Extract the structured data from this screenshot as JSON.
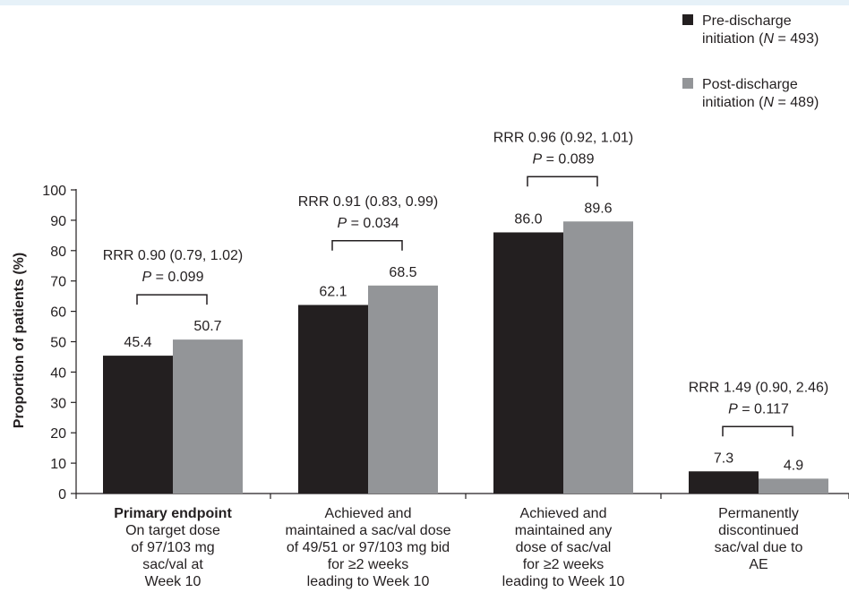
{
  "chart_data": {
    "type": "bar",
    "ylabel": "Proportion of patients (%)",
    "ylim": [
      0,
      100
    ],
    "yticks": [
      0,
      10,
      20,
      30,
      40,
      50,
      60,
      70,
      80,
      90,
      100
    ],
    "legend_position": "top-right",
    "series": [
      {
        "name": "Pre-discharge initiation (N = 493)",
        "name_lines": [
          "Pre-discharge",
          "initiation (",
          "N",
          " = 493)"
        ],
        "color": "#231f20",
        "values": [
          45.4,
          62.1,
          86.0,
          7.3
        ],
        "labels": [
          "45.4",
          "62.1",
          "86.0",
          "7.3"
        ]
      },
      {
        "name": "Post-discharge initiation (N = 489)",
        "name_lines": [
          "Post-discharge",
          "initiation (",
          "N",
          " = 489)"
        ],
        "color": "#939598",
        "values": [
          50.7,
          68.5,
          89.6,
          4.9
        ],
        "labels": [
          "50.7",
          "68.5",
          "89.6",
          "4.9"
        ]
      }
    ],
    "categories": [
      {
        "lines": [
          "Primary endpoint",
          "On target dose",
          "of 97/103 mg",
          "sac/val at",
          "Week 10"
        ],
        "bold_first": true
      },
      {
        "lines": [
          "Achieved and",
          "maintained a sac/val dose",
          "of 49/51 or 97/103 mg bid",
          "for ≥2 weeks",
          "leading to Week 10"
        ],
        "bold_first": false
      },
      {
        "lines": [
          "Achieved and",
          "maintained any",
          "dose of sac/val",
          "for ≥2 weeks",
          "leading to Week 10"
        ],
        "bold_first": false
      },
      {
        "lines": [
          "Permanently",
          "discontinued",
          "sac/val due to",
          "AE"
        ],
        "bold_first": false
      }
    ],
    "annotations": [
      {
        "rrr": "RRR 0.90 (0.79, 1.02)",
        "p_prefix": "P",
        "p_value": " = 0.099"
      },
      {
        "rrr": "RRR 0.91 (0.83, 0.99)",
        "p_prefix": "P",
        "p_value": " = 0.034"
      },
      {
        "rrr": "RRR 0.96 (0.92, 1.01)",
        "p_prefix": "P",
        "p_value": " = 0.089"
      },
      {
        "rrr": "RRR 1.49 (0.90, 2.46)",
        "p_prefix": "P",
        "p_value": " = 0.117"
      }
    ]
  }
}
